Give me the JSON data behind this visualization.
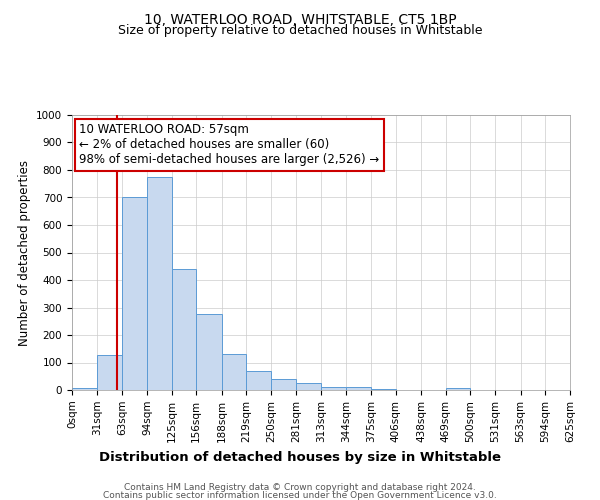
{
  "title1": "10, WATERLOO ROAD, WHITSTABLE, CT5 1BP",
  "title2": "Size of property relative to detached houses in Whitstable",
  "xlabel": "Distribution of detached houses by size in Whitstable",
  "ylabel": "Number of detached properties",
  "bin_edges": [
    0,
    31,
    63,
    94,
    125,
    156,
    188,
    219,
    250,
    281,
    313,
    344,
    375,
    406,
    438,
    469,
    500,
    531,
    563,
    594,
    625
  ],
  "bar_heights": [
    8,
    128,
    700,
    775,
    440,
    275,
    130,
    70,
    40,
    25,
    12,
    12,
    5,
    0,
    0,
    8,
    0,
    0,
    0,
    0
  ],
  "bar_color": "#c8d9ef",
  "bar_edge_color": "#5b9bd5",
  "property_line_x": 57,
  "property_line_color": "#cc0000",
  "ylim": [
    0,
    1000
  ],
  "annotation_line1": "10 WATERLOO ROAD: 57sqm",
  "annotation_line2": "← 2% of detached houses are smaller (60)",
  "annotation_line3": "98% of semi-detached houses are larger (2,526) →",
  "annotation_box_color": "#cc0000",
  "annotation_bg": "#ffffff",
  "footer1": "Contains HM Land Registry data © Crown copyright and database right 2024.",
  "footer2": "Contains public sector information licensed under the Open Government Licence v3.0.",
  "background_color": "#ffffff",
  "grid_color": "#cccccc",
  "title1_fontsize": 10,
  "title2_fontsize": 9,
  "xlabel_fontsize": 9.5,
  "ylabel_fontsize": 8.5,
  "tick_fontsize": 7.5,
  "footer_fontsize": 6.5,
  "annotation_fontsize": 8.5
}
